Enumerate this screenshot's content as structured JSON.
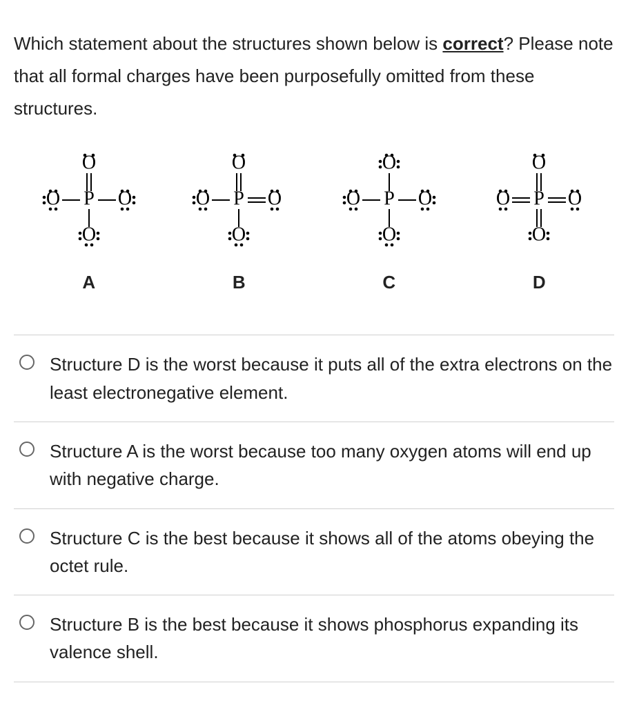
{
  "question": {
    "line1": "Which statement about the structures shown below is ",
    "underlined": "correct",
    "line2": "? Please note that all formal charges have been purposefully omitted from these structures."
  },
  "structures": {
    "font_family": "Times, serif",
    "font_size": 28,
    "atom_P": "P",
    "atom_O": "O",
    "items": [
      {
        "label": "A",
        "bonds": {
          "top": "double",
          "left": "single",
          "right": "single",
          "bottom": "single"
        },
        "dots": {
          "top": {
            "above_left": true,
            "above_right": true,
            "left": false,
            "right": false,
            "below_left": false,
            "below_right": false
          },
          "left": {
            "above": true,
            "left": true,
            "below": true,
            "right": false
          },
          "right": {
            "above": true,
            "right": true,
            "below": true,
            "left": false
          },
          "bottom": {
            "left": true,
            "right": true,
            "below": true,
            "above": false
          }
        }
      },
      {
        "label": "B",
        "bonds": {
          "top": "double",
          "left": "single",
          "right": "double",
          "bottom": "single"
        },
        "dots": {
          "top": {
            "above_left": true,
            "above_right": true,
            "left": false,
            "right": false,
            "below_left": false,
            "below_right": false
          },
          "left": {
            "above": true,
            "left": true,
            "below": true,
            "right": false
          },
          "right": {
            "above": true,
            "below": true,
            "right": false,
            "left": false
          },
          "bottom": {
            "left": true,
            "right": true,
            "below": true,
            "above": false
          }
        }
      },
      {
        "label": "C",
        "bonds": {
          "top": "single",
          "left": "single",
          "right": "single",
          "bottom": "single"
        },
        "dots": {
          "top": {
            "above": true,
            "left": true,
            "right": true,
            "below": false
          },
          "left": {
            "above": true,
            "left": true,
            "below": true,
            "right": false
          },
          "right": {
            "above": true,
            "right": true,
            "below": true,
            "left": false
          },
          "bottom": {
            "left": true,
            "right": true,
            "below": true,
            "above": false
          }
        }
      },
      {
        "label": "D",
        "bonds": {
          "top": "double",
          "left": "double",
          "right": "double",
          "bottom": "double"
        },
        "dots": {
          "top": {
            "above_left": true,
            "above_right": true,
            "left": false,
            "right": false
          },
          "left": {
            "above": true,
            "below": true,
            "left": false,
            "right": false
          },
          "right": {
            "above": true,
            "below": true,
            "right": false,
            "left": false
          },
          "bottom": {
            "left": true,
            "right": true,
            "below": false,
            "above": false
          }
        }
      }
    ]
  },
  "options": [
    {
      "text": "Structure D is the worst because it puts all of the extra electrons on the least electronegative element."
    },
    {
      "text": "Structure A is the worst because too many oxygen atoms will end up with negative charge."
    },
    {
      "text": "Structure C is the best because it shows all of the atoms obeying the octet rule."
    },
    {
      "text": "Structure B is the best because it shows phosphorus expanding its valence shell."
    }
  ],
  "style": {
    "line_color": "#000000",
    "text_color": "#222222",
    "divider_color": "#d0d0d0",
    "radio_border": "#666666",
    "background": "#ffffff"
  }
}
